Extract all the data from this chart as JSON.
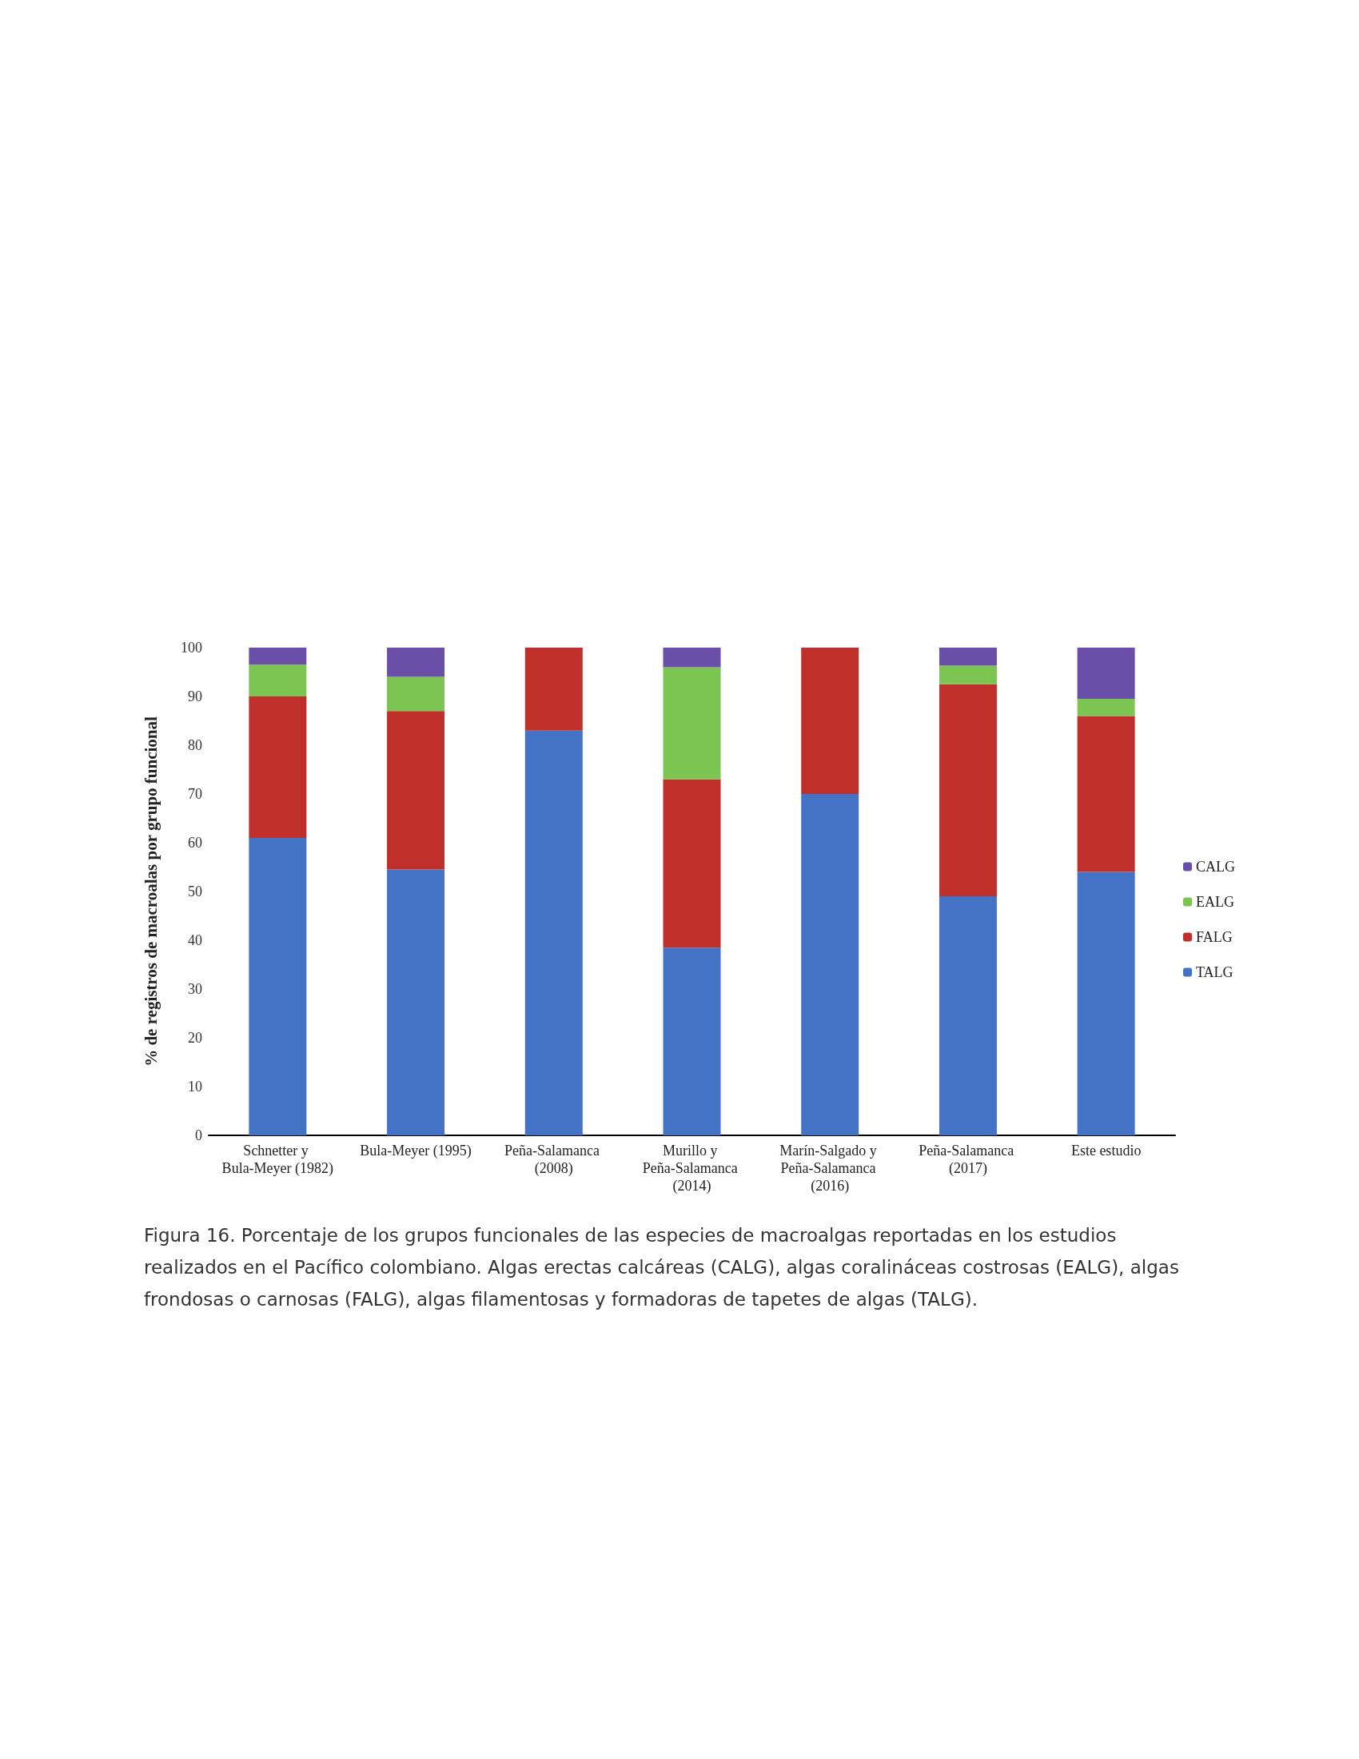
{
  "chart_data": {
    "type": "bar",
    "stacked": true,
    "ylabel": "% de registros de macroalas por grupo funcional",
    "categories": [
      "Schnetter y Bula-Meyer (1982)",
      "Bula-Meyer (1995)",
      "Peña-Salamanca (2008)",
      "Murillo y Peña-Salamanca (2014)",
      "Marín-Salgado y Peña-Salamanca (2016)",
      "Peña-Salamanca (2017)",
      "Este estudio"
    ],
    "series": [
      {
        "name": "TALG",
        "color": "#4472c4",
        "values": [
          61,
          54.5,
          83,
          38.5,
          70,
          49,
          54
        ]
      },
      {
        "name": "FALG",
        "color": "#c0302a",
        "values": [
          29,
          32.5,
          17,
          34.5,
          30,
          43.5,
          32
        ]
      },
      {
        "name": "EALG",
        "color": "#7cc552",
        "values": [
          6.5,
          7,
          null,
          23,
          null,
          3.8,
          3.5
        ]
      },
      {
        "name": "CALG",
        "color": "#6a4fa8",
        "values": [
          3.5,
          6,
          null,
          4,
          null,
          3.7,
          10.5
        ]
      }
    ],
    "ylim": [
      0,
      100
    ],
    "yticks": [
      0,
      10,
      20,
      30,
      40,
      50,
      60,
      70,
      80,
      90,
      100
    ],
    "grid": false,
    "legend": "right",
    "annotations": [
      "Figura 16. Porcentaje de los grupos funcionales de las especies de macroalgas reportadas en los estudios realizados en el Pacífico colombiano. Algas erectas calcáreas (CALG), algas coralináceas costrosas (EALG), algas frondosas o carnosas (FALG), algas filamentosas y formadoras de tapetes de algas (TALG)."
    ]
  }
}
